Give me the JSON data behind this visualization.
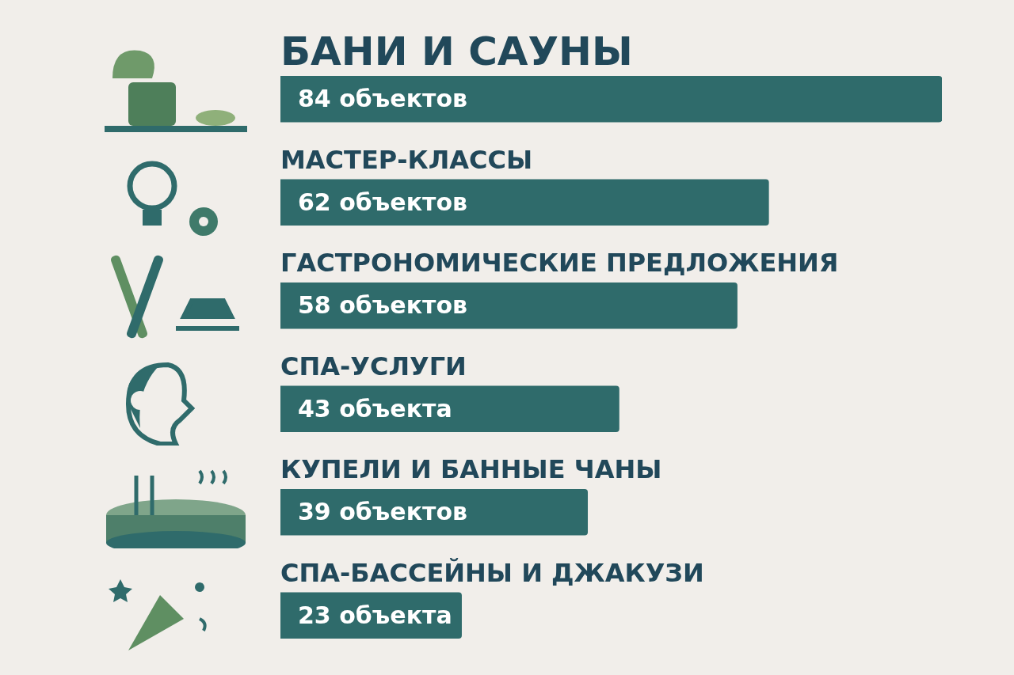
{
  "chart_data": {
    "type": "bar",
    "orientation": "horizontal",
    "data_labels": false,
    "categories": [
      "БАНИ И САУНЫ",
      "МАСТЕР-КЛАССЫ",
      "ГАСТРОНОМИЧЕСКИЕ ПРЕДЛОЖЕНИЯ",
      "СПА-УСЛУГИ",
      "КУПЕЛИ И БАННЫЕ ЧАНЫ",
      "СПА-БАССЕЙНЫ И ДЖАКУЗИ"
    ],
    "values": [
      84,
      62,
      58,
      43,
      39,
      23
    ],
    "value_labels": [
      "84 объектов",
      "62 объектов",
      "58 объектов",
      "43 объекта",
      "39 объектов",
      "23 объекта"
    ],
    "color": "#2f6b6b"
  }
}
